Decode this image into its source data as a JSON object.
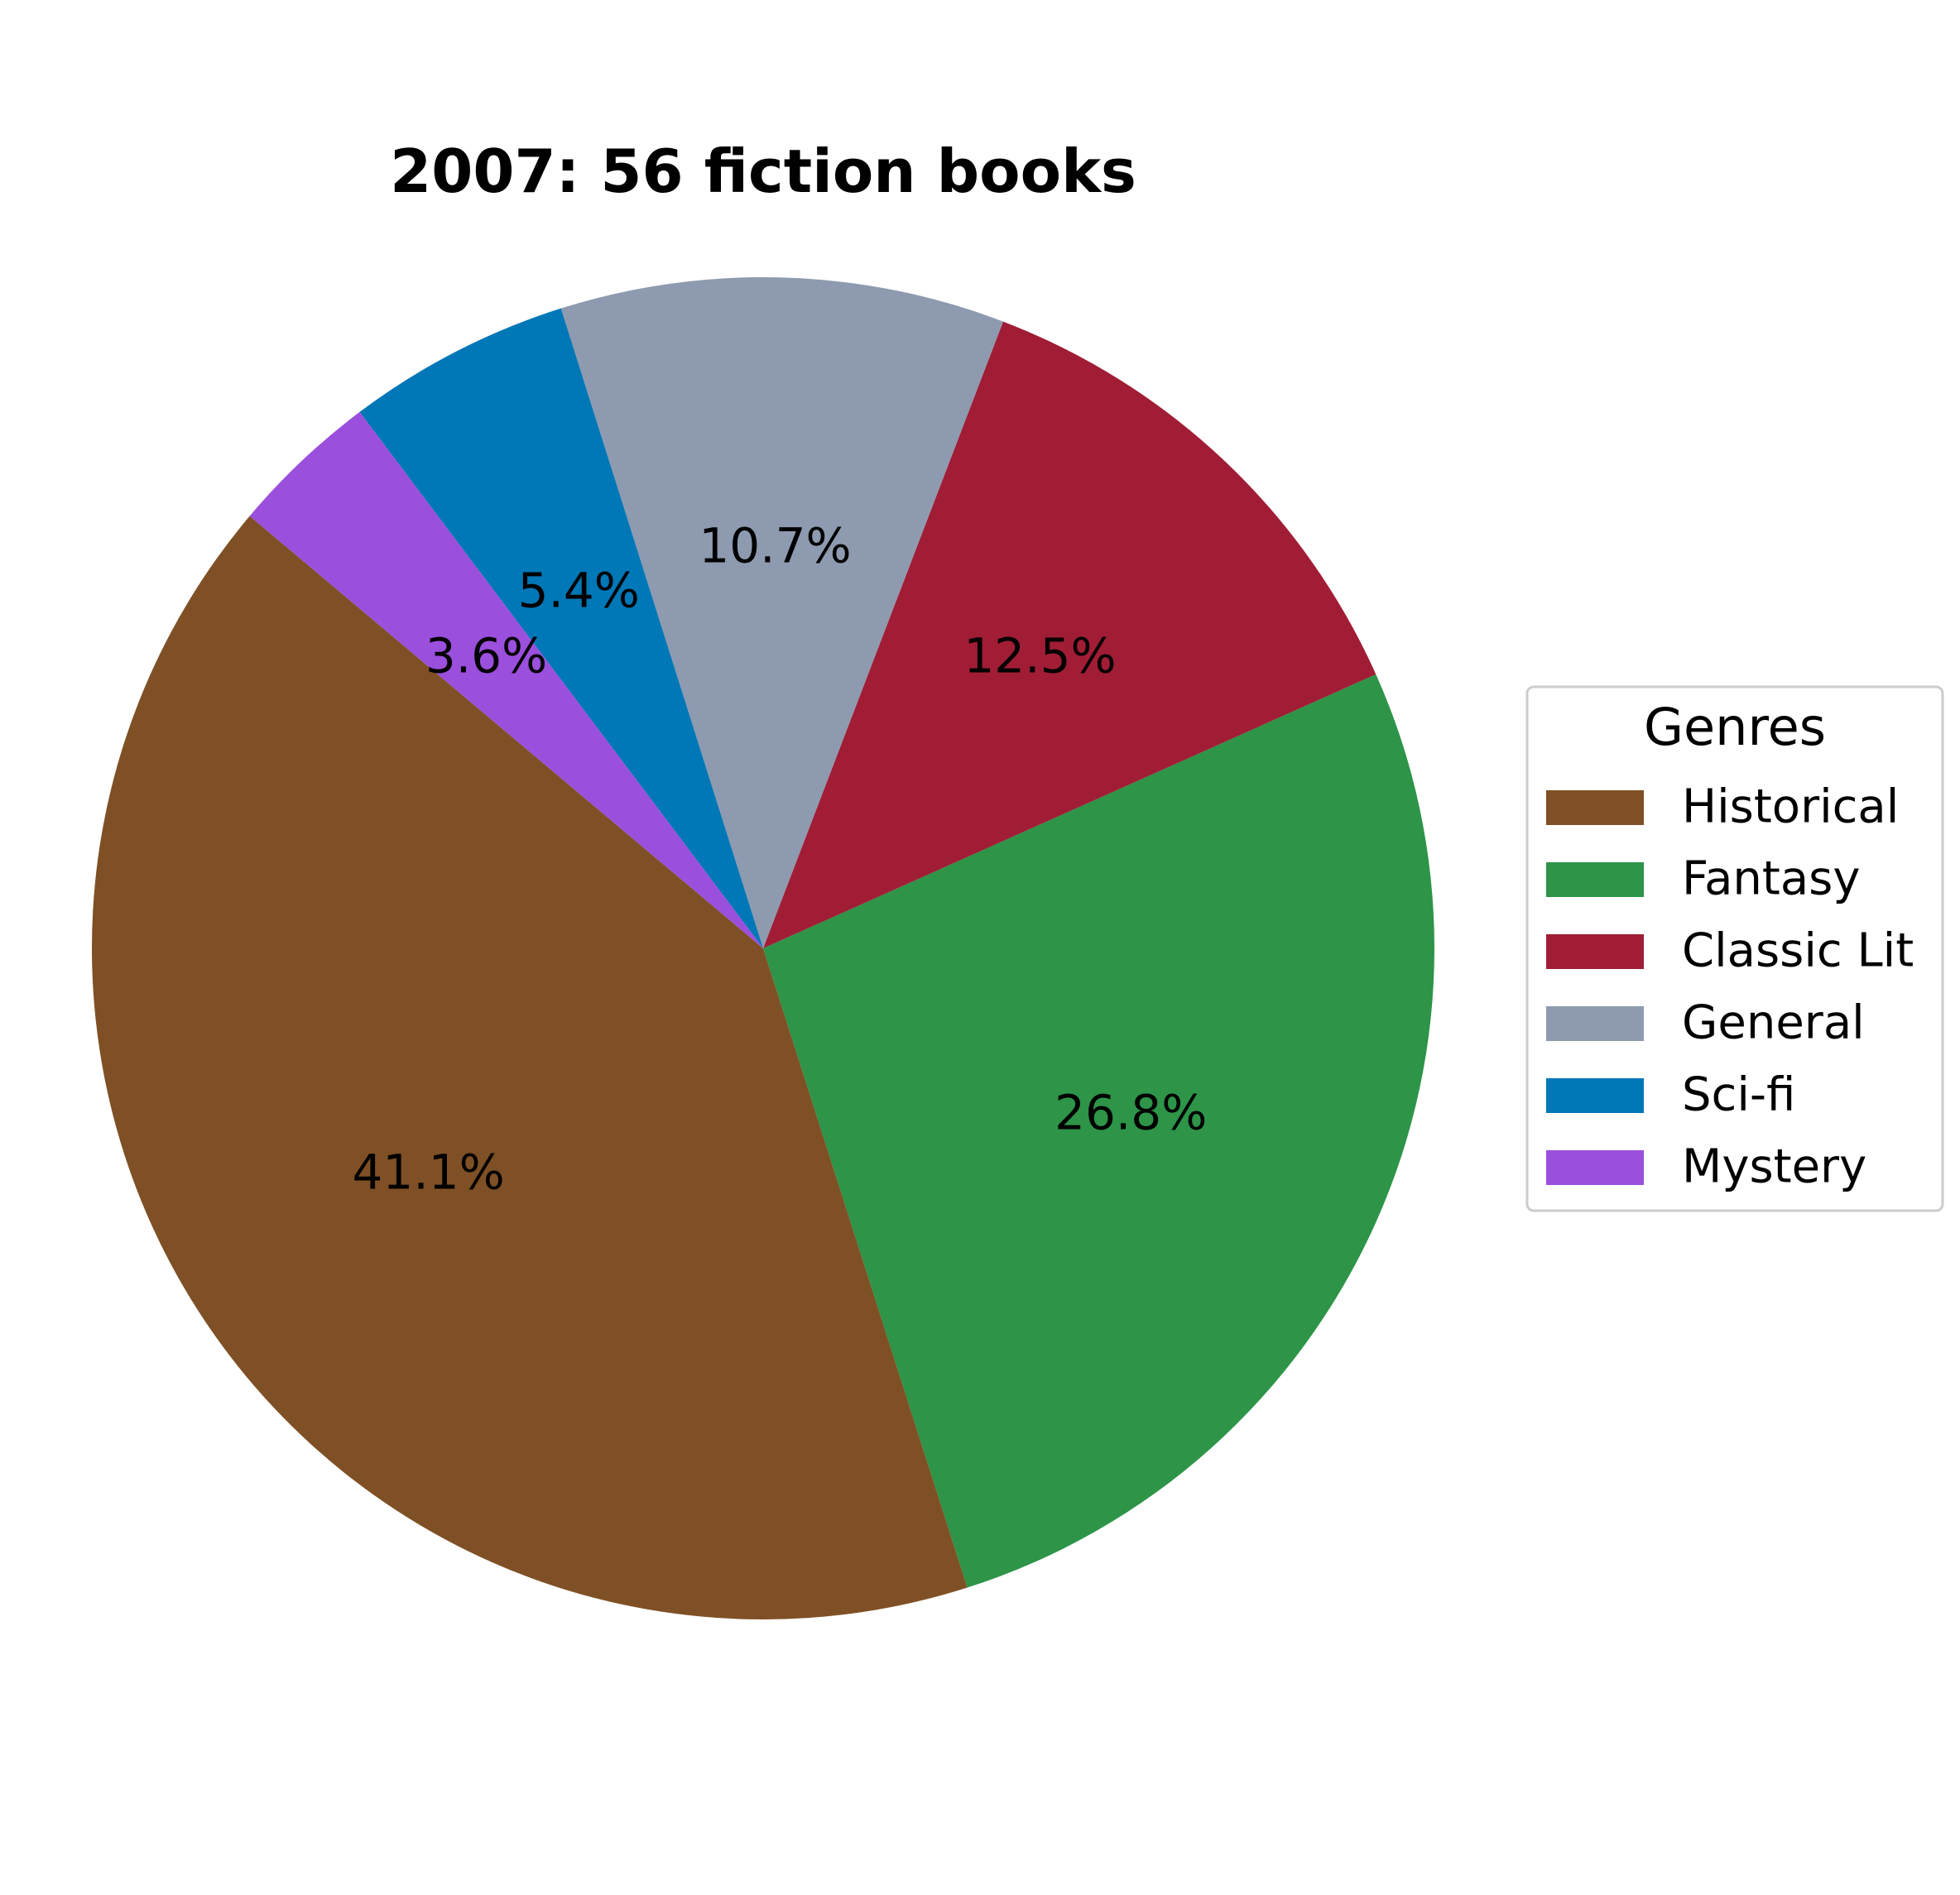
{
  "chart_data": {
    "type": "pie",
    "title": "2007: 56 fiction books",
    "legend": {
      "title": "Genres",
      "placement": "center-right"
    },
    "slices": [
      {
        "label": "Historical",
        "value": 41.1,
        "pct_label": "41.1%",
        "color": "#7f5025"
      },
      {
        "label": "Fantasy",
        "value": 26.8,
        "pct_label": "26.8%",
        "color": "#2d9448"
      },
      {
        "label": "Classic Lit",
        "value": 12.5,
        "pct_label": "12.5%",
        "color": "#a01d35"
      },
      {
        "label": "General",
        "value": 10.7,
        "pct_label": "10.7%",
        "color": "#8e9aaf"
      },
      {
        "label": "Sci-fi",
        "value": 5.4,
        "pct_label": "5.4%",
        "color": "#0077b6"
      },
      {
        "label": "Mystery",
        "value": 3.6,
        "pct_label": "3.6%",
        "color": "#9b4fdd"
      }
    ]
  }
}
